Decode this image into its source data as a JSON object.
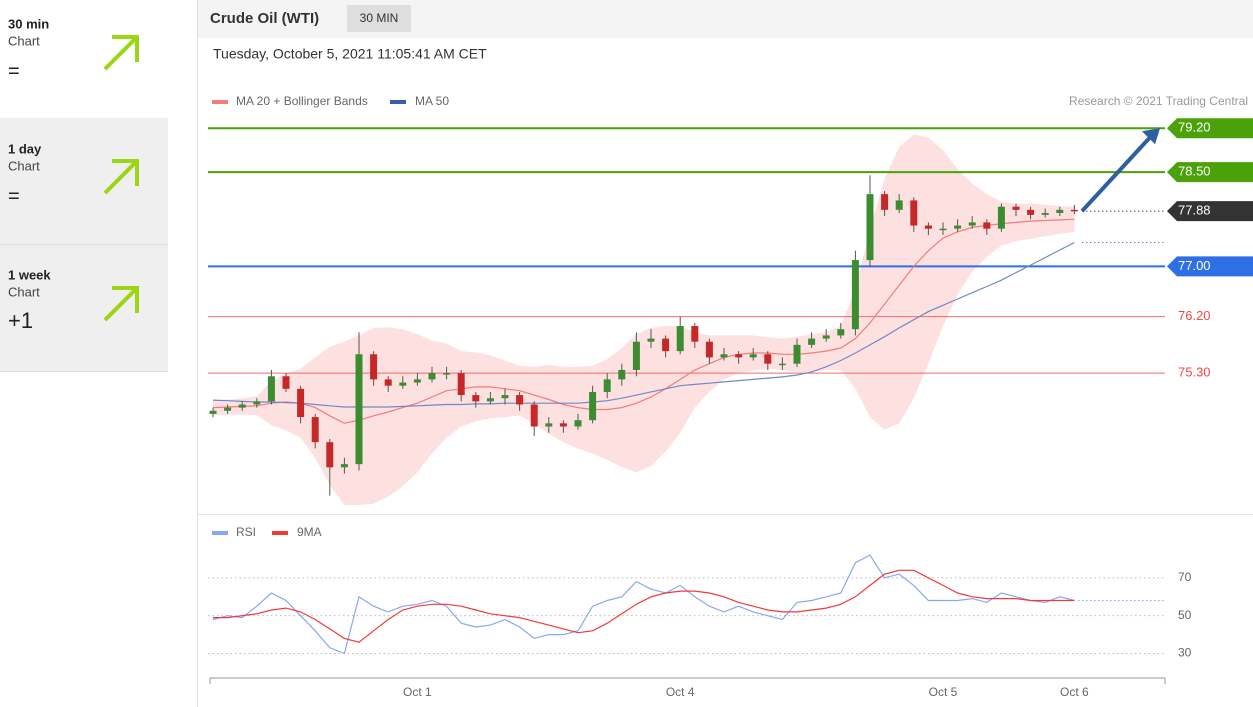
{
  "sidebar": [
    {
      "title": "30 min",
      "subtitle": "Chart",
      "signal": "="
    },
    {
      "title": "1 day",
      "subtitle": "Chart",
      "signal": "="
    },
    {
      "title": "1 week",
      "subtitle": "Chart",
      "signal": "+1"
    }
  ],
  "header": {
    "title": "Crude Oil (WTI)",
    "badge": "30 MIN",
    "date": "Tuesday, October 5, 2021 11:05:41 AM CET"
  },
  "chart_data": [
    {
      "type": "candlestick",
      "credit": "Research © 2021 Trading Central",
      "categories": [
        null,
        null,
        null,
        null,
        null,
        null,
        null,
        null,
        null,
        null,
        null,
        null,
        null,
        null,
        "Oct 1",
        null,
        null,
        null,
        null,
        null,
        null,
        null,
        null,
        null,
        null,
        null,
        null,
        null,
        null,
        null,
        null,
        null,
        "Oct 4",
        null,
        null,
        null,
        null,
        null,
        null,
        null,
        null,
        null,
        null,
        null,
        null,
        null,
        null,
        null,
        null,
        null,
        "Oct 5",
        null,
        null,
        null,
        null,
        null,
        null,
        null,
        null,
        "Oct 6"
      ],
      "open": [
        74.65,
        74.7,
        74.75,
        74.8,
        74.85,
        75.25,
        75.05,
        74.6,
        74.2,
        73.8,
        73.85,
        75.6,
        75.2,
        75.1,
        75.15,
        75.2,
        75.3,
        75.3,
        74.95,
        74.85,
        74.9,
        74.95,
        74.8,
        74.45,
        74.5,
        74.45,
        74.55,
        75.0,
        75.2,
        75.35,
        75.8,
        75.85,
        75.65,
        76.05,
        75.8,
        75.55,
        75.6,
        75.55,
        75.6,
        75.45,
        75.45,
        75.75,
        75.85,
        75.9,
        76.0,
        77.1,
        78.15,
        77.9,
        78.05,
        77.65,
        77.6,
        77.6,
        77.65,
        77.7,
        77.6,
        77.95,
        77.9,
        77.82,
        77.85,
        77.9
      ],
      "high": [
        74.75,
        74.8,
        74.85,
        74.9,
        75.35,
        75.3,
        75.1,
        74.65,
        74.25,
        73.95,
        75.95,
        75.65,
        75.25,
        75.25,
        75.3,
        75.4,
        75.4,
        75.35,
        75.0,
        75.0,
        75.05,
        75.0,
        74.85,
        74.6,
        74.55,
        74.65,
        75.1,
        75.3,
        75.45,
        75.95,
        76.0,
        75.9,
        76.2,
        76.1,
        75.85,
        75.7,
        75.65,
        75.7,
        75.65,
        75.55,
        75.85,
        75.95,
        76.0,
        76.1,
        77.25,
        78.45,
        78.2,
        78.15,
        78.1,
        77.7,
        77.7,
        77.75,
        77.8,
        77.75,
        78.0,
        78.0,
        77.95,
        77.92,
        77.95,
        77.98
      ],
      "low": [
        74.6,
        74.65,
        74.7,
        74.75,
        74.8,
        75.0,
        74.5,
        74.1,
        73.35,
        73.7,
        73.75,
        75.1,
        75.0,
        75.05,
        75.1,
        75.15,
        75.2,
        74.85,
        74.75,
        74.8,
        74.8,
        74.7,
        74.3,
        74.35,
        74.35,
        74.4,
        74.5,
        74.9,
        75.1,
        75.25,
        75.7,
        75.55,
        75.6,
        75.7,
        75.45,
        75.5,
        75.45,
        75.5,
        75.35,
        75.35,
        75.4,
        75.7,
        75.8,
        75.85,
        75.9,
        77.0,
        77.8,
        77.85,
        77.55,
        77.5,
        77.5,
        77.55,
        77.6,
        77.5,
        77.55,
        77.8,
        77.75,
        77.78,
        77.8,
        77.83
      ],
      "close": [
        74.7,
        74.75,
        74.8,
        74.85,
        75.25,
        75.05,
        74.6,
        74.2,
        73.8,
        73.85,
        75.6,
        75.2,
        75.1,
        75.15,
        75.2,
        75.3,
        75.3,
        74.95,
        74.85,
        74.9,
        74.95,
        74.8,
        74.45,
        74.5,
        74.45,
        74.55,
        75.0,
        75.2,
        75.35,
        75.8,
        75.85,
        75.65,
        76.05,
        75.8,
        75.55,
        75.6,
        75.55,
        75.6,
        75.45,
        75.45,
        75.75,
        75.85,
        75.9,
        76.0,
        77.1,
        78.15,
        77.9,
        78.05,
        77.65,
        77.6,
        77.6,
        77.65,
        77.7,
        77.6,
        77.95,
        77.9,
        77.82,
        77.85,
        77.9,
        77.88
      ],
      "up_color": "#3c8d2f",
      "down_color": "#c62828",
      "series": [
        {
          "name": "MA 20 + Bollinger Bands",
          "color": "#f07c7c",
          "band_color": "#fde1e1",
          "values": [
            74.75,
            74.76,
            74.77,
            74.78,
            74.82,
            74.84,
            74.82,
            74.75,
            74.62,
            74.5,
            74.55,
            74.62,
            74.68,
            74.75,
            74.82,
            74.92,
            75.02,
            75.05,
            75.08,
            75.08,
            75.05,
            75.02,
            74.95,
            74.88,
            74.8,
            74.75,
            74.72,
            74.72,
            74.75,
            74.82,
            74.92,
            75.05,
            75.2,
            75.35,
            75.45,
            75.55,
            75.6,
            75.62,
            75.62,
            75.6,
            75.6,
            75.62,
            75.65,
            75.7,
            75.85,
            76.1,
            76.4,
            76.7,
            77.0,
            77.25,
            77.45,
            77.55,
            77.62,
            77.65,
            77.68,
            77.7,
            77.72,
            77.73,
            77.74,
            77.75
          ],
          "upper": [
            74.87,
            74.88,
            74.9,
            74.93,
            75.17,
            75.29,
            75.37,
            75.55,
            75.72,
            75.8,
            75.9,
            76.02,
            76.03,
            76.0,
            75.92,
            75.82,
            75.77,
            75.65,
            75.63,
            75.58,
            75.5,
            75.42,
            75.4,
            75.43,
            75.4,
            75.4,
            75.42,
            75.52,
            75.7,
            75.92,
            76.02,
            76.05,
            76.05,
            75.95,
            75.9,
            75.9,
            75.9,
            75.9,
            75.87,
            75.85,
            75.88,
            75.92,
            75.95,
            76.05,
            76.65,
            77.6,
            78.4,
            78.9,
            79.1,
            79.05,
            78.85,
            78.55,
            78.32,
            78.15,
            78.03,
            78.0,
            78.0,
            77.98,
            77.96,
            77.95
          ],
          "lower": [
            74.63,
            74.64,
            74.64,
            74.63,
            74.47,
            74.39,
            74.27,
            73.95,
            73.52,
            73.2,
            73.2,
            73.22,
            73.33,
            73.5,
            73.72,
            74.02,
            74.27,
            74.45,
            74.53,
            74.58,
            74.6,
            74.62,
            74.5,
            74.33,
            74.2,
            74.1,
            74.02,
            73.92,
            73.8,
            73.72,
            73.82,
            74.05,
            74.35,
            74.75,
            75.0,
            75.2,
            75.3,
            75.34,
            75.37,
            75.35,
            75.32,
            75.32,
            75.35,
            75.35,
            75.05,
            74.6,
            74.4,
            74.5,
            74.9,
            75.45,
            76.05,
            76.55,
            76.92,
            77.15,
            77.33,
            77.4,
            77.44,
            77.48,
            77.52,
            77.55
          ]
        },
        {
          "name": "MA 50",
          "color": "#7088c8",
          "legend_color": "#3a5fa8",
          "values": [
            74.87,
            74.86,
            74.85,
            74.84,
            74.84,
            74.83,
            74.82,
            74.8,
            74.78,
            74.76,
            74.76,
            74.76,
            74.76,
            74.77,
            74.78,
            74.79,
            74.8,
            74.8,
            74.81,
            74.81,
            74.82,
            74.82,
            74.82,
            74.82,
            74.82,
            74.82,
            74.84,
            74.86,
            74.9,
            74.95,
            75.0,
            75.05,
            75.1,
            75.12,
            75.14,
            75.16,
            75.18,
            75.2,
            75.22,
            75.24,
            75.27,
            75.32,
            75.4,
            75.5,
            75.62,
            75.75,
            75.88,
            76.02,
            76.15,
            76.28,
            76.38,
            76.48,
            76.58,
            76.68,
            76.78,
            76.9,
            77.02,
            77.14,
            77.26,
            77.38
          ]
        }
      ],
      "ylim": [
        73.12,
        79.49
      ],
      "levels": [
        {
          "value": 79.2,
          "label": "79.20",
          "color": "#4aa10a",
          "style": "tag"
        },
        {
          "value": 78.5,
          "label": "78.50",
          "color": "#4aa10a",
          "style": "tag"
        },
        {
          "value": 77.88,
          "label": "77.88",
          "color": "#333333",
          "style": "current"
        },
        {
          "value": 77.0,
          "label": "77.00",
          "color": "#2f6fe6",
          "style": "tag"
        },
        {
          "value": 76.2,
          "label": "76.20",
          "color": "#f04848",
          "style": "text"
        },
        {
          "value": 75.3,
          "label": "75.30",
          "color": "#f04848",
          "style": "text"
        }
      ]
    },
    {
      "type": "line",
      "series": [
        {
          "name": "RSI",
          "color": "#8aa6f0",
          "values": [
            48,
            50,
            49,
            55,
            62,
            58,
            50,
            42,
            33,
            30,
            60,
            55,
            52,
            55,
            56,
            58,
            55,
            46,
            44,
            45,
            48,
            44,
            38,
            40,
            40,
            42,
            55,
            58,
            60,
            68,
            64,
            62,
            66,
            60,
            55,
            52,
            55,
            52,
            50,
            48,
            57,
            58,
            60,
            62,
            78,
            82,
            70,
            72,
            66,
            58,
            58,
            58,
            59,
            57,
            62,
            60,
            58,
            57,
            60,
            58
          ]
        },
        {
          "name": "9MA",
          "color": "#f03a3a",
          "values": [
            49,
            49,
            50,
            51,
            53,
            54,
            52,
            48,
            43,
            38,
            36,
            42,
            48,
            53,
            55,
            56,
            56,
            55,
            53,
            51,
            50,
            49,
            47,
            45,
            43,
            41,
            42,
            46,
            51,
            56,
            60,
            62,
            63,
            63,
            62,
            60,
            57,
            55,
            53,
            52,
            52,
            53,
            54,
            56,
            60,
            66,
            72,
            74,
            74,
            70,
            66,
            62,
            60,
            59,
            59,
            59,
            58,
            58,
            58,
            58
          ]
        }
      ],
      "ylim": [
        16,
        90
      ],
      "yticks": [
        70,
        50,
        30
      ]
    }
  ]
}
